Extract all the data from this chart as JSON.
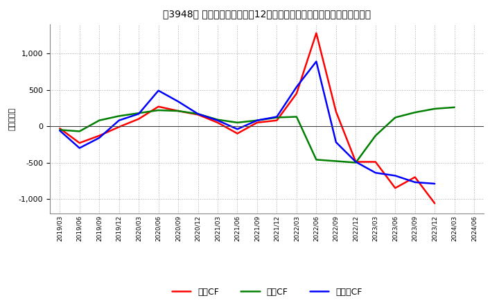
{
  "title": "［3948］ キャッシュフローの12か月移動合計の対前年同期増減額の推移",
  "ylabel": "（百万円）",
  "bg_color": "#ffffff",
  "plot_bg_color": "#ffffff",
  "grid_color": "#aaaaaa",
  "x_labels": [
    "2019/03",
    "2019/06",
    "2019/09",
    "2019/12",
    "2020/03",
    "2020/06",
    "2020/09",
    "2020/12",
    "2021/03",
    "2021/06",
    "2021/09",
    "2021/12",
    "2022/03",
    "2022/06",
    "2022/09",
    "2022/12",
    "2023/03",
    "2023/06",
    "2023/09",
    "2023/12",
    "2024/03",
    "2024/06"
  ],
  "operating_cf": [
    -30,
    -230,
    -130,
    -10,
    100,
    270,
    210,
    160,
    50,
    -100,
    50,
    80,
    450,
    1280,
    200,
    -490,
    -490,
    -850,
    -700,
    -1060,
    null,
    null
  ],
  "investing_cf": [
    -50,
    -70,
    80,
    140,
    180,
    220,
    210,
    170,
    90,
    50,
    80,
    120,
    130,
    -460,
    -480,
    -500,
    -130,
    120,
    190,
    240,
    260,
    null
  ],
  "free_cf": [
    -60,
    -300,
    -160,
    80,
    170,
    490,
    340,
    170,
    80,
    -40,
    80,
    130,
    540,
    890,
    -220,
    -490,
    -640,
    -680,
    -770,
    -790,
    null,
    null
  ],
  "ylim": [
    -1200,
    1400
  ],
  "yticks": [
    -1000,
    -500,
    0,
    500,
    1000
  ],
  "colors": {
    "operating": "#ff0000",
    "investing": "#008000",
    "free": "#0000ff"
  },
  "legend_labels": [
    "営業CF",
    "投資CF",
    "フリーCF"
  ]
}
